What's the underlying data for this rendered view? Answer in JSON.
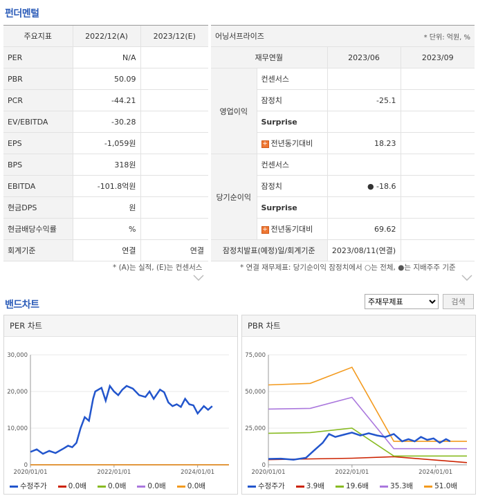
{
  "section1_title": "펀더멘털",
  "left_table": {
    "headers": [
      "주요지표",
      "2022/12(A)",
      "2023/12(E)"
    ],
    "rows": [
      {
        "label": "PER",
        "a": "N/A",
        "e": ""
      },
      {
        "label": "PBR",
        "a": "50.09",
        "e": ""
      },
      {
        "label": "PCR",
        "a": "-44.21",
        "e": ""
      },
      {
        "label": "EV/EBITDA",
        "a": "-30.28",
        "e": ""
      },
      {
        "label": "EPS",
        "a": "-1,059원",
        "e": ""
      },
      {
        "label": "BPS",
        "a": "318원",
        "e": ""
      },
      {
        "label": "EBITDA",
        "a": "-101.8억원",
        "e": ""
      },
      {
        "label": "현금DPS",
        "a": "원",
        "e": ""
      },
      {
        "label": "현금배당수익률",
        "a": "%",
        "e": ""
      },
      {
        "label": "회계기준",
        "a": "연결",
        "e": "연결"
      }
    ],
    "note": "* (A)는 실적, (E)는 컨센서스"
  },
  "right_table": {
    "company": "어닝서프라이즈",
    "unit": "* 단위: 억원, %",
    "headers": [
      "재무연월",
      "2023/06",
      "2023/09"
    ],
    "groups": [
      {
        "name": "영업이익",
        "rows": [
          {
            "label": "컨센서스",
            "v1": "",
            "v2": "",
            "bold": false,
            "plus": false
          },
          {
            "label": "잠정치",
            "v1": "-25.1",
            "v2": "",
            "bold": false,
            "plus": false
          },
          {
            "label": "Surprise",
            "v1": "",
            "v2": "",
            "bold": true,
            "plus": false
          },
          {
            "label": "전년동기대비",
            "v1": "18.23",
            "v2": "",
            "bold": false,
            "plus": true
          }
        ]
      },
      {
        "name": "당기순이익",
        "rows": [
          {
            "label": "컨센서스",
            "v1": "",
            "v2": "",
            "bold": false,
            "plus": false
          },
          {
            "label": "잠정치",
            "v1": "● -18.6",
            "v2": "",
            "bold": false,
            "plus": false
          },
          {
            "label": "Surprise",
            "v1": "",
            "v2": "",
            "bold": true,
            "plus": false
          },
          {
            "label": "전년동기대비",
            "v1": "69.62",
            "v2": "",
            "bold": false,
            "plus": true
          }
        ]
      }
    ],
    "footer_label": "잠정치발표(예정)일/회계기준",
    "footer_value": "2023/08/11(연결)",
    "note": "* 연결 재무제표: 당기순이익 잠정치에서 ○는 전체, ●는 지배주주 기준"
  },
  "section2_title": "밴드차트",
  "band_select": {
    "value": "주재무제표",
    "options": [
      "주재무제표"
    ]
  },
  "search_button": "검색",
  "chart_data": [
    {
      "type": "line",
      "title": "PER 차트",
      "x_ticks": [
        "2020/01/01",
        "2022/01/01",
        "2024/01/01"
      ],
      "y_ticks": [
        "0",
        "10,000",
        "20,000",
        "30,000"
      ],
      "ylim": [
        0,
        30000
      ],
      "xlim": [
        2020.0,
        2024.75
      ],
      "series": [
        {
          "name": "수정주가",
          "color": "#2255cc",
          "x": [
            2020.0,
            2020.15,
            2020.3,
            2020.45,
            2020.6,
            2020.8,
            2020.9,
            2021.0,
            2021.1,
            2021.2,
            2021.3,
            2021.4,
            2021.5,
            2021.55,
            2021.7,
            2021.8,
            2021.9,
            2022.0,
            2022.1,
            2022.2,
            2022.3,
            2022.45,
            2022.6,
            2022.75,
            2022.85,
            2022.95,
            2023.1,
            2023.2,
            2023.3,
            2023.4,
            2023.5,
            2023.6,
            2023.7,
            2023.8,
            2023.9,
            2024.0,
            2024.15,
            2024.25,
            2024.35
          ],
          "y": [
            3500,
            4200,
            3000,
            3800,
            3200,
            4500,
            5200,
            4800,
            6000,
            10000,
            13000,
            12000,
            18000,
            20000,
            21000,
            17500,
            21500,
            20000,
            19000,
            20500,
            21500,
            20800,
            19000,
            18500,
            20000,
            18000,
            20500,
            19800,
            17000,
            16000,
            16500,
            15800,
            18000,
            16500,
            16200,
            14000,
            16000,
            15000,
            16000
          ]
        },
        {
          "name": "0.0배",
          "color": "#cc2200",
          "x": [
            2020.0,
            2024.75
          ],
          "y": [
            0,
            0
          ]
        },
        {
          "name": "0.0배",
          "color": "#88bb22",
          "x": [
            2020.0,
            2024.75
          ],
          "y": [
            0,
            0
          ]
        },
        {
          "name": "0.0배",
          "color": "#aa77dd",
          "x": [
            2020.0,
            2024.75
          ],
          "y": [
            0,
            0
          ]
        },
        {
          "name": "0.0배",
          "color": "#f39a1e",
          "x": [
            2020.0,
            2024.75
          ],
          "y": [
            0,
            0
          ]
        }
      ]
    },
    {
      "type": "line",
      "title": "PBR 차트",
      "x_ticks": [
        "2020/01/01",
        "2022/01/01",
        "2024/01/01"
      ],
      "y_ticks": [
        "0",
        "25,000",
        "50,000",
        "75,000"
      ],
      "ylim": [
        0,
        75000
      ],
      "xlim": [
        2020.0,
        2024.75
      ],
      "series": [
        {
          "name": "수정주가",
          "color": "#2255cc",
          "x": [
            2020.0,
            2020.3,
            2020.6,
            2020.9,
            2021.1,
            2021.3,
            2021.45,
            2021.6,
            2021.8,
            2022.0,
            2022.2,
            2022.4,
            2022.6,
            2022.8,
            2023.0,
            2023.2,
            2023.35,
            2023.5,
            2023.65,
            2023.8,
            2023.95,
            2024.1,
            2024.25,
            2024.35
          ],
          "y": [
            4000,
            4200,
            3500,
            4800,
            10000,
            15000,
            21000,
            19000,
            20500,
            22000,
            20000,
            21500,
            20000,
            19000,
            21000,
            16000,
            17500,
            16000,
            19000,
            17000,
            18000,
            15000,
            17500,
            16000
          ]
        },
        {
          "name": "3.9배",
          "color": "#cc2200",
          "x": [
            2020.0,
            2021.0,
            2022.0,
            2023.0,
            2024.75
          ],
          "y": [
            3500,
            4000,
            4500,
            5500,
            1500
          ]
        },
        {
          "name": "19.6배",
          "color": "#88bb22",
          "x": [
            2020.0,
            2021.0,
            2022.0,
            2023.0,
            2024.75
          ],
          "y": [
            21500,
            22000,
            25000,
            6000,
            6000
          ]
        },
        {
          "name": "35.3배",
          "color": "#aa77dd",
          "x": [
            2020.0,
            2021.0,
            2022.0,
            2023.0,
            2024.75
          ],
          "y": [
            38000,
            38500,
            46000,
            11000,
            11000
          ]
        },
        {
          "name": "51.0배",
          "color": "#f39a1e",
          "x": [
            2020.0,
            2021.0,
            2022.0,
            2023.0,
            2024.75
          ],
          "y": [
            54500,
            55500,
            66500,
            16000,
            16000
          ]
        }
      ]
    }
  ]
}
